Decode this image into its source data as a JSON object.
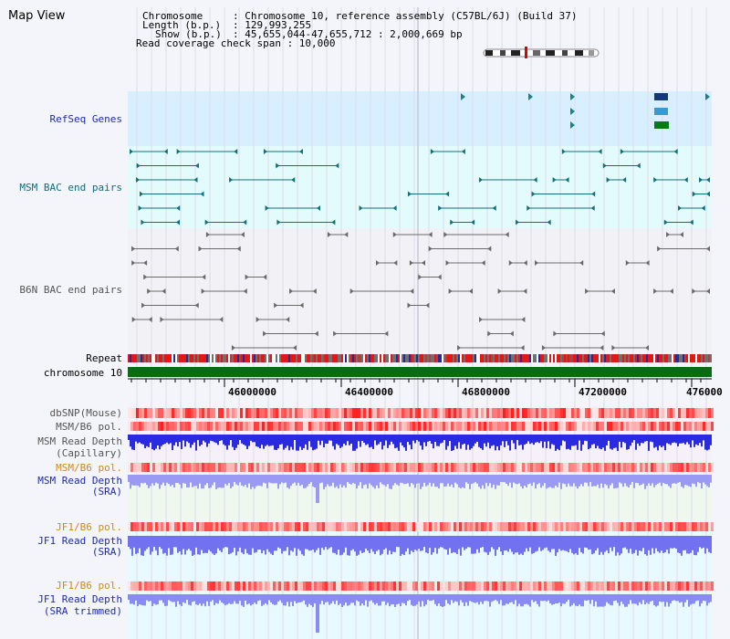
{
  "title": "Map View",
  "info": {
    "chromosome_key": "Chromosome",
    "chromosome_val": ": Chromosome 10, reference assembly (C57BL/6J) (Build 37)",
    "length_key": "Length (b.p.)",
    "length_val": ": 129,993,255",
    "show_key": "Show (b.p.)",
    "show_val": ": 45,655,044-47,655,712 : 2,000,669 bp",
    "coverage": "Read coverage check span : 10,000"
  },
  "tracks": {
    "refseq": "RefSeq Genes",
    "msm_bac": "MSM BAC end pairs",
    "b6n_bac": "B6N BAC end pairs",
    "repeat": "Repeat",
    "chromosome": "chromosome 10",
    "dbsnp": "dbSNP(Mouse)",
    "msm_b6_pol_1": "MSM/B6 pol.",
    "msm_depth_cap_1": "MSM Read Depth",
    "msm_depth_cap_2": "(Capillary)",
    "msm_b6_pol_2": "MSM/B6 pol.",
    "msm_depth_sra_1": "MSM Read Depth",
    "msm_depth_sra_2": "(SRA)",
    "jf1_b6_pol_1": "JF1/B6 pol.",
    "jf1_depth_sra_1": "JF1 Read Depth",
    "jf1_depth_sra_2": "(SRA)",
    "jf1_b6_pol_2": "JF1/B6 pol.",
    "jf1_depth_trim_1": "JF1 Read Depth",
    "jf1_depth_trim_2": "(SRA trimmed)"
  },
  "axis": {
    "ticks": [
      "46000000",
      "46400000",
      "46800000",
      "47200000",
      "476000"
    ]
  },
  "colors": {
    "refseq_label": "#1e2ca8",
    "msm_label": "#0f6d7a",
    "b6n_label": "#555555",
    "gold_label": "#d08a10",
    "blue_label": "#1e2ca8",
    "chrom_green": "#0b6b12",
    "depth_dark": "#2020e0",
    "depth_light": "#8484f4"
  }
}
